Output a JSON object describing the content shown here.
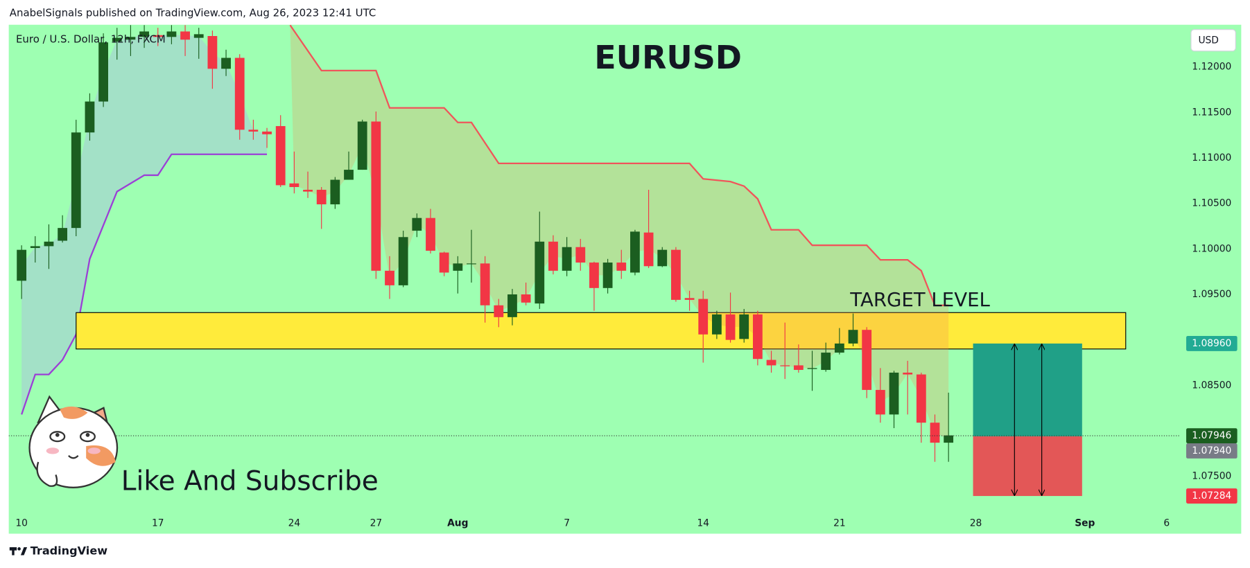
{
  "header": {
    "publisher": "AnabelSignals published on TradingView.com, Aug 26, 2023 12:41 UTC",
    "brand": "TradingView"
  },
  "chart_data": {
    "type": "candlestick",
    "title": "EURUSD",
    "symbol": "Euro / U.S. Dollar, 12h, FXCM",
    "currency": "USD",
    "annotation": "Like And Subscribe",
    "background": "#9effb2",
    "up_color": "#1b5e20",
    "down_color": "#f23645",
    "x": [
      0,
      1,
      2,
      3,
      4,
      5,
      6,
      7,
      8,
      9,
      10,
      11,
      12,
      13,
      14,
      15,
      16,
      17,
      18,
      19,
      20,
      21,
      22,
      23,
      24,
      25,
      26,
      27,
      28,
      29,
      30,
      31,
      32,
      33,
      34,
      35,
      36,
      37,
      38,
      39,
      40,
      41,
      42,
      43,
      44,
      45,
      46,
      47,
      48,
      49,
      50,
      51,
      52,
      53,
      54,
      55,
      56,
      57,
      58,
      59,
      60,
      61,
      62,
      63,
      64,
      65,
      66,
      67,
      68
    ],
    "open": [
      1.0965,
      1.1001,
      1.1003,
      1.1009,
      1.1023,
      1.1128,
      1.1162,
      1.1228,
      1.123,
      1.1233,
      1.1235,
      1.1233,
      1.1239,
      1.1232,
      1.1234,
      1.1198,
      1.121,
      1.1131,
      1.1129,
      1.1135,
      1.1072,
      1.1065,
      1.1065,
      1.1049,
      1.1076,
      1.1087,
      1.114,
      1.0976,
      1.096,
      1.102,
      1.1034,
      1.0996,
      1.0976,
      1.0984,
      1.0984,
      1.0938,
      1.0925,
      1.095,
      1.094,
      1.1008,
      1.0976,
      1.1002,
      1.0985,
      1.0957,
      1.0985,
      1.0974,
      1.1018,
      1.0981,
      1.0999,
      1.0946,
      1.0945,
      1.0906,
      1.0928,
      1.0901,
      1.0928,
      1.0878,
      1.0872,
      1.0872,
      1.0868,
      1.0867,
      1.0886,
      1.0896,
      1.0911,
      1.0845,
      1.0818,
      1.0864,
      1.0862,
      1.0809,
      1.0787
    ],
    "high": [
      1.1004,
      1.1014,
      1.1027,
      1.1037,
      1.1142,
      1.1171,
      1.1237,
      1.1243,
      1.1246,
      1.1246,
      1.1243,
      1.1246,
      1.1246,
      1.1243,
      1.124,
      1.1219,
      1.1214,
      1.1142,
      1.1133,
      1.1147,
      1.1107,
      1.1085,
      1.1068,
      1.1079,
      1.1107,
      1.1142,
      1.1151,
      1.0992,
      1.102,
      1.1039,
      1.1044,
      1.0997,
      1.0992,
      1.1021,
      1.0992,
      1.0945,
      1.0956,
      1.0963,
      1.1041,
      1.1015,
      1.1013,
      1.1011,
      1.0986,
      1.0989,
      1.0999,
      1.1021,
      1.1065,
      1.1002,
      1.1002,
      1.0954,
      1.0954,
      1.0932,
      1.0952,
      1.0934,
      1.0932,
      1.0888,
      1.0919,
      1.0895,
      1.0888,
      1.0897,
      1.0913,
      1.0929,
      1.0914,
      1.0869,
      1.0866,
      1.0877,
      1.0864,
      1.0818,
      1.0842
    ],
    "low": [
      1.0945,
      1.0985,
      1.0978,
      1.1007,
      1.1014,
      1.1119,
      1.1156,
      1.1208,
      1.1212,
      1.1221,
      1.1223,
      1.1225,
      1.1212,
      1.1209,
      1.1176,
      1.119,
      1.112,
      1.112,
      1.1111,
      1.1068,
      1.1061,
      1.1056,
      1.1022,
      1.1044,
      1.1076,
      1.1087,
      1.0967,
      1.0945,
      1.0958,
      1.1013,
      1.0995,
      1.097,
      1.0951,
      1.0963,
      1.0919,
      1.0914,
      1.0916,
      1.0938,
      1.0934,
      1.0972,
      1.097,
      1.0976,
      1.0932,
      1.0951,
      1.0967,
      1.0971,
      1.0979,
      1.098,
      1.0942,
      1.0932,
      1.0875,
      1.0901,
      1.0897,
      1.0897,
      1.0872,
      1.0864,
      1.0857,
      1.0864,
      1.0844,
      1.0865,
      1.0884,
      1.0893,
      1.0836,
      1.0809,
      1.0803,
      1.0818,
      1.0787,
      1.0766,
      1.0766
    ],
    "close": [
      1.0999,
      1.1003,
      1.1008,
      1.1023,
      1.1128,
      1.1162,
      1.1227,
      1.1232,
      1.1233,
      1.1239,
      1.1233,
      1.1239,
      1.123,
      1.1236,
      1.1198,
      1.121,
      1.1131,
      1.1129,
      1.1126,
      1.107,
      1.1068,
      1.1063,
      1.1049,
      1.1076,
      1.1087,
      1.114,
      1.0976,
      1.096,
      1.1013,
      1.1034,
      1.0998,
      1.0974,
      1.0984,
      1.0984,
      1.0938,
      1.0925,
      1.095,
      1.0941,
      1.1008,
      1.0976,
      1.1002,
      1.0985,
      1.0957,
      1.0985,
      1.0976,
      1.1019,
      1.0981,
      1.0999,
      1.0944,
      1.0944,
      1.0906,
      1.0928,
      1.09,
      1.0928,
      1.0879,
      1.0872,
      1.0871,
      1.0867,
      1.0869,
      1.0886,
      1.0896,
      1.0911,
      1.0845,
      1.0818,
      1.0864,
      1.0862,
      1.0809,
      1.0787,
      1.0795
    ],
    "xlim": [
      -0.94,
      84.97
    ],
    "ylim": [
      1.07106,
      1.12464
    ],
    "xticks": [
      {
        "value": 0,
        "label": "10"
      },
      {
        "value": 10,
        "label": "17"
      },
      {
        "value": 20,
        "label": "24"
      },
      {
        "value": 26,
        "label": "27"
      },
      {
        "value": 32,
        "label": "Aug",
        "bold": true
      },
      {
        "value": 40,
        "label": "7"
      },
      {
        "value": 50,
        "label": "14"
      },
      {
        "value": 60,
        "label": "21"
      },
      {
        "value": 70,
        "label": "28"
      },
      {
        "value": 78,
        "label": "Sep",
        "bold": true
      },
      {
        "value": 84,
        "label": "6"
      }
    ],
    "yticks": [
      {
        "value": 1.12,
        "label": "1.12000"
      },
      {
        "value": 1.115,
        "label": "1.11500"
      },
      {
        "value": 1.11,
        "label": "1.11000"
      },
      {
        "value": 1.105,
        "label": "1.10500"
      },
      {
        "value": 1.1,
        "label": "1.10000"
      },
      {
        "value": 1.095,
        "label": "1.09500"
      },
      {
        "value": 1.085,
        "label": "1.08500"
      },
      {
        "value": 1.075,
        "label": "1.07500"
      }
    ],
    "lines": [
      {
        "color": "#9b3fd6",
        "fill": "rgba(170,180,230,0.4)",
        "x": [
          0,
          1,
          2,
          3,
          4,
          5,
          7,
          9,
          10,
          11,
          18
        ],
        "values": [
          1.0818,
          1.0862,
          1.0862,
          1.0878,
          1.0906,
          1.0989,
          1.1063,
          1.1081,
          1.1081,
          1.1104,
          1.1104
        ]
      },
      {
        "color": "#f0555a",
        "fill": "rgba(242,140,80,0.25)",
        "x": [
          19.7,
          22,
          26,
          27,
          31,
          32,
          33,
          35,
          49,
          50,
          52,
          53,
          54,
          55,
          57,
          58,
          62,
          63,
          65,
          66,
          67,
          68
        ],
        "values": [
          1.1246,
          1.1196,
          1.1196,
          1.1155,
          1.1155,
          1.1139,
          1.1139,
          1.1094,
          1.1094,
          1.1077,
          1.1074,
          1.1069,
          1.1055,
          1.1021,
          1.1021,
          1.1004,
          1.1004,
          1.0988,
          1.0988,
          1.0976,
          1.0938,
          1.0938
        ]
      }
    ],
    "zone": {
      "x": [
        4,
        81
      ],
      "y": [
        1.089,
        1.093
      ],
      "color": "#ffeb3b",
      "label": "TARGET LEVEL"
    },
    "position": {
      "x": [
        69.8,
        77.8
      ],
      "target_color": "#20a087",
      "stop_color": "#e35757"
    },
    "price_labels": [
      {
        "value": 1.0896,
        "label": "1.08960",
        "color": "#22ab94"
      },
      {
        "value": 1.07946,
        "label": "1.07946",
        "color": "#1b5e20"
      },
      {
        "value": 1.0794,
        "label": "1.07940",
        "color": "#787b86"
      },
      {
        "value": 1.07284,
        "label": "1.07284",
        "color": "#f23645"
      }
    ]
  }
}
